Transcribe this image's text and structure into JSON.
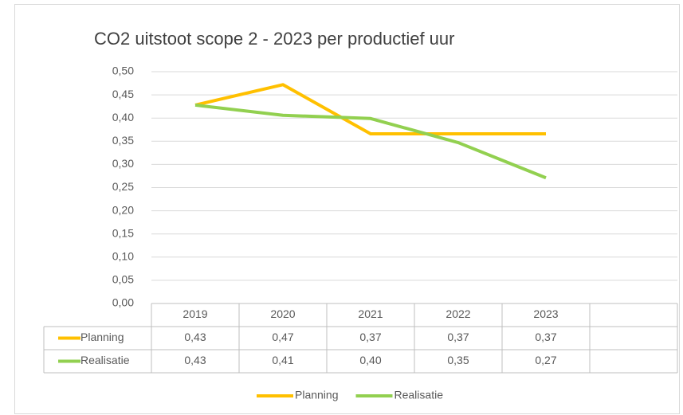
{
  "chart_data": {
    "type": "line",
    "title": "CO2 uitstoot scope 2 - 2023 per productief uur",
    "categories": [
      "2019",
      "2020",
      "2021",
      "2022",
      "2023",
      null
    ],
    "series": [
      {
        "name": "Planning",
        "color": "#ffc000",
        "values": [
          0.428,
          0.472,
          0.366,
          0.366,
          0.366,
          null
        ],
        "value_labels": [
          "0,43",
          "0,47",
          "0,37",
          "0,37",
          "0,37",
          null
        ]
      },
      {
        "name": "Realisatie",
        "color": "#92d050",
        "values": [
          0.428,
          0.406,
          0.399,
          0.347,
          0.271,
          null
        ],
        "value_labels": [
          "0,43",
          "0,41",
          "0,40",
          "0,35",
          "0,27",
          null
        ]
      }
    ],
    "ylim": [
      0,
      0.5
    ],
    "yticks": [
      {
        "value": 0,
        "label": "0,00"
      },
      {
        "value": 0.05,
        "label": "0,05"
      },
      {
        "value": 0.1,
        "label": "0,10"
      },
      {
        "value": 0.15,
        "label": "0,15"
      },
      {
        "value": 0.2,
        "label": "0,20"
      },
      {
        "value": 0.25,
        "label": "0,25"
      },
      {
        "value": 0.3,
        "label": "0,30"
      },
      {
        "value": 0.35,
        "label": "0,35"
      },
      {
        "value": 0.4,
        "label": "0,40"
      },
      {
        "value": 0.45,
        "label": "0,45"
      },
      {
        "value": 0.5,
        "label": "0,50"
      }
    ],
    "grid": true,
    "legend": "bottom"
  }
}
